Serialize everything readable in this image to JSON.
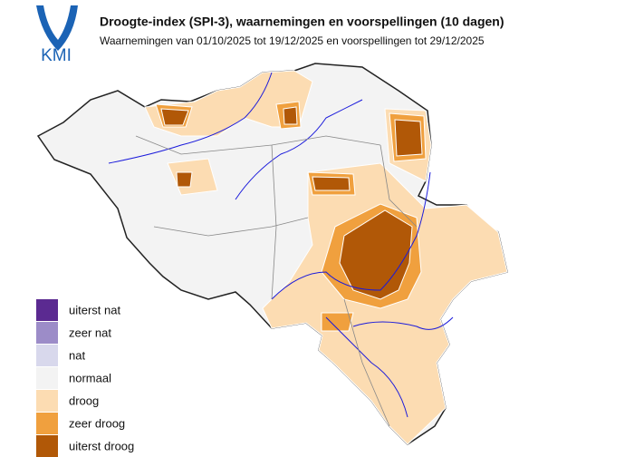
{
  "logo": {
    "text": "KMI"
  },
  "header": {
    "title": "Droogte-index (SPI-3), waarnemingen en voorspellingen (10 dagen)",
    "subtitle": "Waarnemingen van 01/10/2025 tot 19/12/2025 en voorspellingen tot 29/12/2025"
  },
  "legend": {
    "items": [
      {
        "label": "uiterst nat",
        "color": "#5b2a91"
      },
      {
        "label": "zeer nat",
        "color": "#9c8cc8"
      },
      {
        "label": "nat",
        "color": "#d8d8ec"
      },
      {
        "label": "normaal",
        "color": "#f3f3f3"
      },
      {
        "label": "droog",
        "color": "#fcdcb2"
      },
      {
        "label": "zeer droog",
        "color": "#f0a03e"
      },
      {
        "label": "uiterst droog",
        "color": "#b15807"
      }
    ]
  }
}
